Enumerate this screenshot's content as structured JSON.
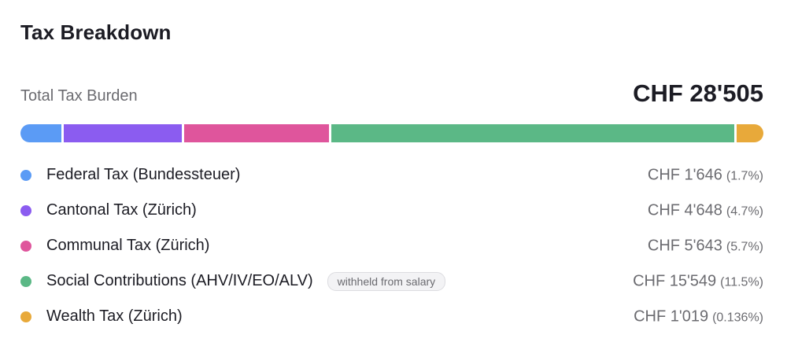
{
  "title": "Tax Breakdown",
  "total": {
    "label": "Total Tax Burden",
    "value": "CHF 28'505"
  },
  "colors": {
    "federal": "#5b9bf5",
    "cantonal": "#8b5cf0",
    "communal": "#df559c",
    "social": "#5bb886",
    "wealth": "#e8a93a"
  },
  "items": [
    {
      "id": "federal",
      "label": "Federal Tax (Bundessteuer)",
      "amount": "CHF 1'646",
      "percent": "(1.7%)",
      "badge": "",
      "value": 1646
    },
    {
      "id": "cantonal",
      "label": "Cantonal Tax (Zürich)",
      "amount": "CHF 4'648",
      "percent": "(4.7%)",
      "badge": "",
      "value": 4648
    },
    {
      "id": "communal",
      "label": "Communal Tax (Zürich)",
      "amount": "CHF 5'643",
      "percent": "(5.7%)",
      "badge": "",
      "value": 5643
    },
    {
      "id": "social",
      "label": "Social Contributions (AHV/IV/EO/ALV)",
      "amount": "CHF 15'549",
      "percent": "(11.5%)",
      "badge": "withheld from salary",
      "value": 15549
    },
    {
      "id": "wealth",
      "label": "Wealth Tax (Zürich)",
      "amount": "CHF 1'019",
      "percent": "(0.136%)",
      "badge": "",
      "value": 1019
    }
  ]
}
